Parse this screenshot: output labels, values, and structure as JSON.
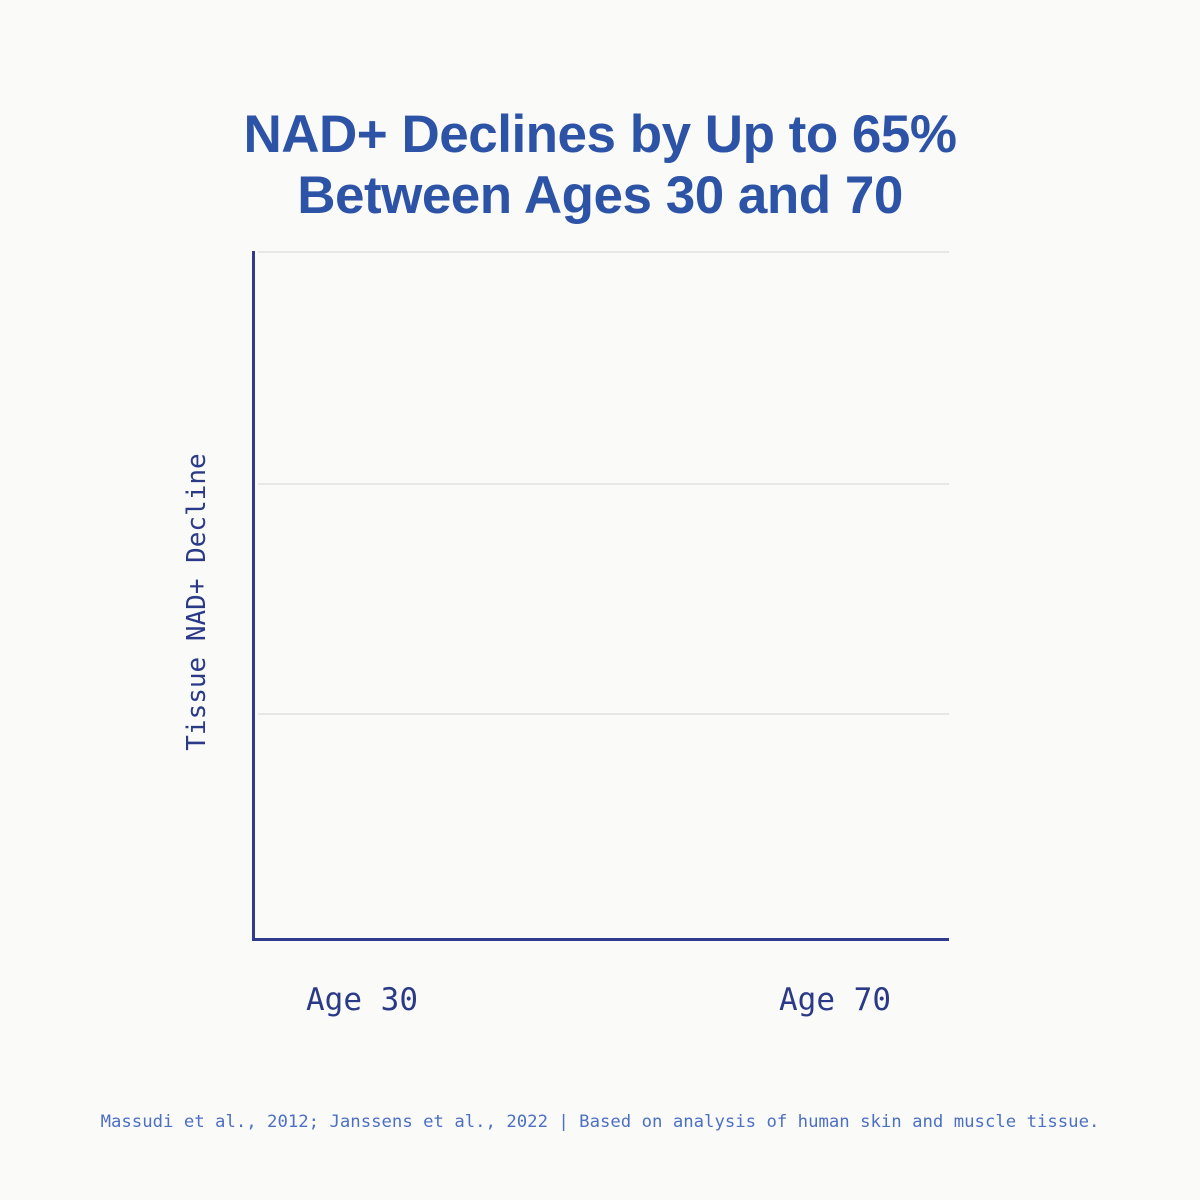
{
  "title": {
    "line1": "NAD+ Declines by Up to 65%",
    "line2": "Between Ages 30 and 70"
  },
  "chart": {
    "y_axis_label": "Tissue NAD+ Decline",
    "x_tick_labels": [
      "Age 30",
      "Age 70"
    ],
    "gridline_count": 3
  },
  "footer": {
    "citation": "Massudi et al., 2012; Janssens et al., 2022 | Based on analysis of human skin and muscle tissue."
  },
  "colors": {
    "background": "#fafaf9",
    "title_blue": "#2d53a7",
    "axis_navy": "#2f3c8e",
    "tick_label_navy": "#2b3a87",
    "footer_blue": "#4c70c4",
    "gridline_gray": "#e7e7e7"
  },
  "chart_data": {
    "type": "line",
    "title": "NAD+ Declines by Up to 65% Between Ages 30 and 70",
    "categories": [
      "Age 30",
      "Age 70"
    ],
    "series": [],
    "xlabel": "",
    "ylabel": "Tissue NAD+ Decline",
    "grid": "3 horizontal gridlines, no y tick labels",
    "legend": "none",
    "data_rendered": false
  }
}
